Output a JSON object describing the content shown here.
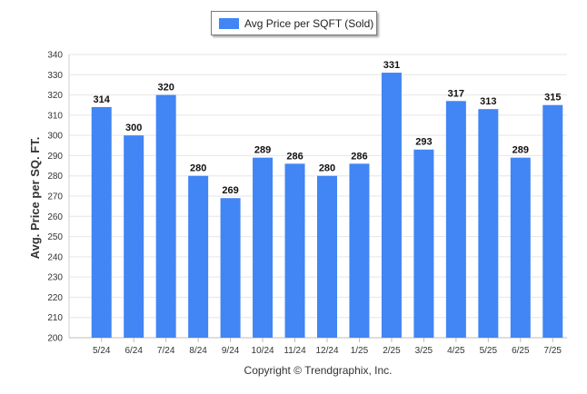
{
  "chart_data": {
    "type": "bar",
    "categories": [
      "5/24",
      "6/24",
      "7/24",
      "8/24",
      "9/24",
      "10/24",
      "11/24",
      "12/24",
      "1/25",
      "2/25",
      "3/25",
      "4/25",
      "5/25",
      "6/25",
      "7/25"
    ],
    "series": [
      {
        "name": "Avg Price per SQFT (Sold)",
        "values": [
          314,
          300,
          320,
          280,
          269,
          289,
          286,
          280,
          286,
          331,
          293,
          317,
          313,
          289,
          315
        ],
        "color": "#4285f4"
      }
    ],
    "ylabel": "Avg. Price per SQ. FT.",
    "xlabel": "",
    "ylim": [
      200,
      340
    ],
    "yticks": [
      200,
      210,
      220,
      230,
      240,
      250,
      260,
      270,
      280,
      290,
      300,
      310,
      320,
      330,
      340
    ],
    "grid": true,
    "legend_placement": "top-center",
    "data_labels": true
  },
  "footer": {
    "copyright": "Copyright © Trendgraphix, Inc."
  }
}
